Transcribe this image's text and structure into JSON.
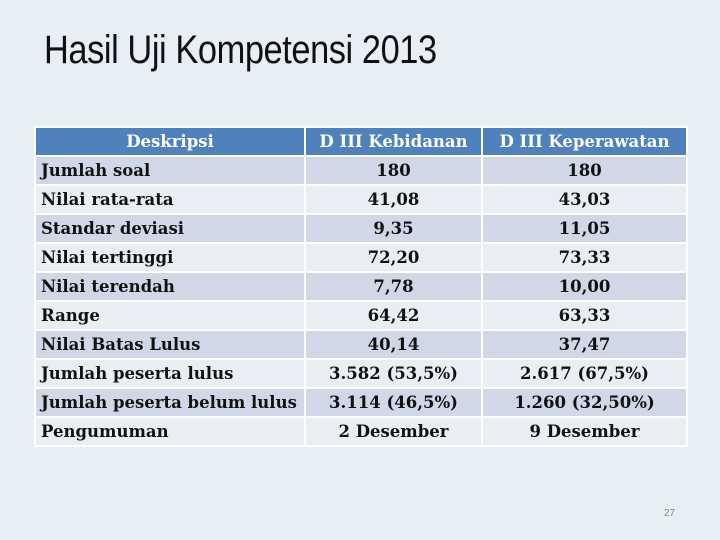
{
  "slide": {
    "title": "Hasil Uji Kompetensi 2013",
    "page_number": "27"
  },
  "table": {
    "headers": [
      "Deskripsi",
      "D III Kebidanan",
      "D III Keperawatan"
    ],
    "rows": [
      {
        "label": "Jumlah soal",
        "kebidanan": "180",
        "keperawatan": "180"
      },
      {
        "label": "Nilai rata-rata",
        "kebidanan": "41,08",
        "keperawatan": "43,03"
      },
      {
        "label": "Standar deviasi",
        "kebidanan": "9,35",
        "keperawatan": "11,05"
      },
      {
        "label": "Nilai tertinggi",
        "kebidanan": "72,20",
        "keperawatan": "73,33"
      },
      {
        "label": "Nilai terendah",
        "kebidanan": "7,78",
        "keperawatan": "10,00"
      },
      {
        "label": "Range",
        "kebidanan": "64,42",
        "keperawatan": "63,33"
      },
      {
        "label": "Nilai Batas Lulus",
        "kebidanan": "40,14",
        "keperawatan": "37,47"
      },
      {
        "label": "Jumlah peserta lulus",
        "kebidanan": "3.582 (53,5%)",
        "keperawatan": "2.617 (67,5%)"
      },
      {
        "label": "Jumlah peserta belum lulus",
        "kebidanan": "3.114 (46,5%)",
        "keperawatan": "1.260 (32,50%)"
      },
      {
        "label": "Pengumuman",
        "kebidanan": "2 Desember",
        "keperawatan": "9 Desember"
      }
    ]
  },
  "colors": {
    "background": "#e8eef6",
    "header": "#4f81bd",
    "row_dark": "#d0d8e8",
    "row_light": "#e9edf4"
  }
}
